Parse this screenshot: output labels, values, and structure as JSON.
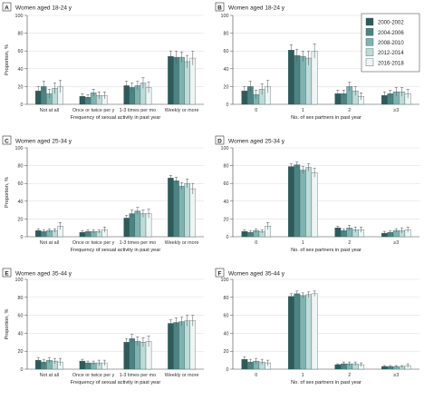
{
  "legend": {
    "items": [
      "2000-2002",
      "2004-2006",
      "2008-2010",
      "2012-2014",
      "2016-2018"
    ]
  },
  "colors": [
    "#2e5a5a",
    "#4c8484",
    "#7fb3b2",
    "#bddbd9",
    "#eef5f4"
  ],
  "chart_data": [
    {
      "type": "bar",
      "panel": "A",
      "title": "Women aged 18-24 y",
      "xlabel": "Frequency of sexual activity in past year",
      "ylabel": "Proportion, %",
      "ylim": [
        0,
        100
      ],
      "yticks": [
        0,
        20,
        40,
        60,
        80,
        100
      ],
      "categories": [
        "Not at all",
        "Once or twice per y",
        "1-3 times per mo",
        "Weekly or more"
      ],
      "series": [
        {
          "name": "2000-2002",
          "values": [
            15,
            9,
            21,
            54
          ],
          "err": [
            5,
            3,
            5,
            6
          ]
        },
        {
          "name": "2004-2006",
          "values": [
            20,
            8,
            19,
            53
          ],
          "err": [
            6,
            3,
            5,
            7
          ]
        },
        {
          "name": "2008-2010",
          "values": [
            12,
            13,
            21,
            53
          ],
          "err": [
            5,
            4,
            5,
            6
          ]
        },
        {
          "name": "2012-2014",
          "values": [
            18,
            10,
            24,
            48
          ],
          "err": [
            6,
            4,
            6,
            7
          ]
        },
        {
          "name": "2016-2018",
          "values": [
            20,
            10,
            19,
            52
          ],
          "err": [
            7,
            4,
            6,
            8
          ]
        }
      ]
    },
    {
      "type": "bar",
      "panel": "B",
      "title": "Women aged 18-24 y",
      "xlabel": "No. of sex partners in past year",
      "ylabel": "",
      "ylim": [
        0,
        100
      ],
      "yticks": [
        0,
        20,
        40,
        60,
        80,
        100
      ],
      "categories": [
        "0",
        "1",
        "2",
        "≥3"
      ],
      "series": [
        {
          "name": "2000-2002",
          "values": [
            15,
            61,
            12,
            10
          ],
          "err": [
            5,
            6,
            4,
            4
          ]
        },
        {
          "name": "2004-2006",
          "values": [
            20,
            55,
            12,
            12
          ],
          "err": [
            6,
            7,
            4,
            4
          ]
        },
        {
          "name": "2008-2010",
          "values": [
            11,
            54,
            20,
            14
          ],
          "err": [
            5,
            6,
            5,
            5
          ]
        },
        {
          "name": "2012-2014",
          "values": [
            17,
            52,
            15,
            14
          ],
          "err": [
            6,
            8,
            5,
            5
          ]
        },
        {
          "name": "2016-2018",
          "values": [
            20,
            60,
            9,
            12
          ],
          "err": [
            7,
            8,
            4,
            5
          ]
        }
      ]
    },
    {
      "type": "bar",
      "panel": "C",
      "title": "Women aged 25-34 y",
      "xlabel": "Frequency of sexual activity in past year",
      "ylabel": "Proportion, %",
      "ylim": [
        0,
        100
      ],
      "yticks": [
        0,
        20,
        40,
        60,
        80,
        100
      ],
      "categories": [
        "Not at all",
        "Once or twice per y",
        "1-3 times per mo",
        "Weekly or more"
      ],
      "series": [
        {
          "name": "2000-2002",
          "values": [
            7,
            5,
            21,
            66
          ],
          "err": [
            2,
            2,
            3,
            3
          ]
        },
        {
          "name": "2004-2006",
          "values": [
            6,
            6,
            26,
            63
          ],
          "err": [
            2,
            2,
            4,
            4
          ]
        },
        {
          "name": "2008-2010",
          "values": [
            7,
            6,
            29,
            57
          ],
          "err": [
            2,
            2,
            4,
            4
          ]
        },
        {
          "name": "2012-2014",
          "values": [
            7,
            6,
            26,
            60
          ],
          "err": [
            2,
            2,
            4,
            5
          ]
        },
        {
          "name": "2016-2018",
          "values": [
            12,
            8,
            26,
            54
          ],
          "err": [
            4,
            3,
            5,
            6
          ]
        }
      ]
    },
    {
      "type": "bar",
      "panel": "D",
      "title": "Women aged 25-34 y",
      "xlabel": "No. of sex partners in past year",
      "ylabel": "",
      "ylim": [
        0,
        100
      ],
      "yticks": [
        0,
        20,
        40,
        60,
        80,
        100
      ],
      "categories": [
        "0",
        "1",
        "2",
        "≥3"
      ],
      "series": [
        {
          "name": "2000-2002",
          "values": [
            6,
            79,
            10,
            4
          ],
          "err": [
            2,
            3,
            2,
            2
          ]
        },
        {
          "name": "2004-2006",
          "values": [
            5,
            81,
            7,
            5
          ],
          "err": [
            2,
            3,
            2,
            2
          ]
        },
        {
          "name": "2008-2010",
          "values": [
            7,
            75,
            10,
            7
          ],
          "err": [
            2,
            4,
            3,
            2
          ]
        },
        {
          "name": "2012-2014",
          "values": [
            6,
            78,
            8,
            7
          ],
          "err": [
            2,
            4,
            3,
            3
          ]
        },
        {
          "name": "2016-2018",
          "values": [
            12,
            72,
            8,
            8
          ],
          "err": [
            4,
            5,
            3,
            3
          ]
        }
      ]
    },
    {
      "type": "bar",
      "panel": "E",
      "title": "Women aged 35-44 y",
      "xlabel": "Frequency of sexual activity in past year",
      "ylabel": "Proportion, %",
      "ylim": [
        0,
        100
      ],
      "yticks": [
        0,
        20,
        40,
        60,
        80,
        100
      ],
      "categories": [
        "Not at all",
        "Once or twice per y",
        "1-3 times per mo",
        "Weekly or more"
      ],
      "series": [
        {
          "name": "2000-2002",
          "values": [
            10,
            9,
            30,
            51
          ],
          "err": [
            3,
            2,
            4,
            4
          ]
        },
        {
          "name": "2004-2006",
          "values": [
            8,
            7,
            34,
            52
          ],
          "err": [
            3,
            2,
            5,
            5
          ]
        },
        {
          "name": "2008-2010",
          "values": [
            10,
            7,
            31,
            53
          ],
          "err": [
            3,
            2,
            5,
            5
          ]
        },
        {
          "name": "2012-2014",
          "values": [
            9,
            7,
            30,
            54
          ],
          "err": [
            3,
            3,
            5,
            6
          ]
        },
        {
          "name": "2016-2018",
          "values": [
            8,
            7,
            31,
            54
          ],
          "err": [
            4,
            3,
            6,
            6
          ]
        }
      ]
    },
    {
      "type": "bar",
      "panel": "F",
      "title": "Women aged 35-44 y",
      "xlabel": "No. of sex partners in past year",
      "ylabel": "",
      "ylim": [
        0,
        100
      ],
      "yticks": [
        0,
        20,
        40,
        60,
        80,
        100
      ],
      "categories": [
        "0",
        "1",
        "2",
        "≥3"
      ],
      "series": [
        {
          "name": "2000-2002",
          "values": [
            11,
            81,
            5,
            3
          ],
          "err": [
            3,
            3,
            1,
            1
          ]
        },
        {
          "name": "2004-2006",
          "values": [
            8,
            84,
            6,
            3
          ],
          "err": [
            3,
            3,
            2,
            1
          ]
        },
        {
          "name": "2008-2010",
          "values": [
            9,
            82,
            6,
            3
          ],
          "err": [
            3,
            3,
            2,
            1
          ]
        },
        {
          "name": "2012-2014",
          "values": [
            8,
            83,
            6,
            3
          ],
          "err": [
            3,
            3,
            2,
            1
          ]
        },
        {
          "name": "2016-2018",
          "values": [
            7,
            84,
            5,
            4
          ],
          "err": [
            3,
            3,
            2,
            2
          ]
        }
      ]
    }
  ]
}
